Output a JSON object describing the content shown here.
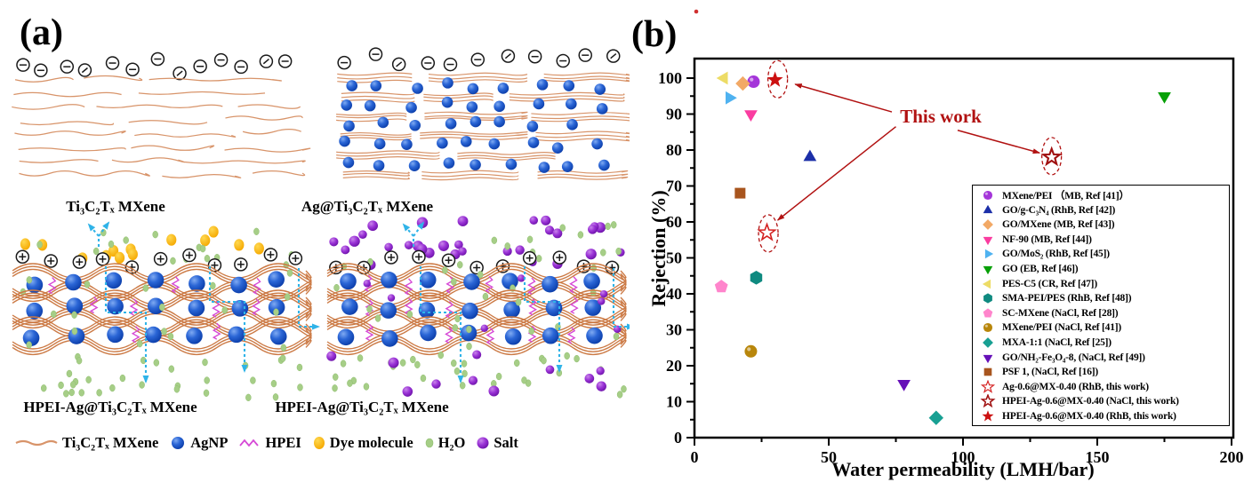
{
  "panel_a": {
    "label": "(a)",
    "sublabels": [
      "Ti₃C₂Tₓ MXene",
      "Ag@Ti₃C₂Tₓ MXene",
      "HPEI-Ag@Ti₃C₂Tₓ MXene",
      "HPEI-Ag@Ti₃C₂Tₓ MXene"
    ],
    "legend": [
      {
        "symbol": "mxene-wave",
        "label": "Ti₃C₂Tₓ MXene"
      },
      {
        "symbol": "agnp-sphere",
        "label": "AgNP"
      },
      {
        "symbol": "hpei-zigzag",
        "label": "HPEI"
      },
      {
        "symbol": "dye-sphere",
        "label": "Dye molecule"
      },
      {
        "symbol": "water-dot",
        "label": "H₂O"
      },
      {
        "symbol": "salt-sphere",
        "label": "Salt"
      }
    ],
    "charge_negative": "⊖",
    "charge_positive": "⊕",
    "colors": {
      "mxene_line": "#D8946A",
      "membrane_line": "#CC7A45",
      "agnp": "#1E56C8",
      "hpei": "#D649D6",
      "dye": "#FFB400",
      "water": "#A6CE87",
      "salt": "#8E24CE",
      "water_path_arrow": "#2FB3E8"
    }
  },
  "panel_b": {
    "label": "(b)"
  },
  "chart_data": {
    "type": "scatter",
    "title": "",
    "xlabel": "Water permeability (LMH/bar)",
    "ylabel": "Rejection (%)",
    "xlim": [
      0,
      200
    ],
    "ylim": [
      0,
      105
    ],
    "x_ticks": [
      0,
      50,
      100,
      150,
      200
    ],
    "y_ticks": [
      0,
      10,
      20,
      30,
      40,
      50,
      60,
      70,
      80,
      90,
      100
    ],
    "x_minor_step": 25,
    "y_minor_step": 5,
    "grid": false,
    "legend_position": "inside-right",
    "annotation": {
      "text": "This work",
      "color": "#B11111",
      "ellipses": [
        {
          "x": 31,
          "y": 99.7
        },
        {
          "x": 27.5,
          "y": 56.8
        },
        {
          "x": 133,
          "y": 78.3
        }
      ],
      "arrows": [
        {
          "x1": 73.5,
          "y1": 90.6,
          "x2": 37.5,
          "y2": 98.3
        },
        {
          "x1": 75.0,
          "y1": 86.5,
          "x2": 31.0,
          "y2": 60.5
        },
        {
          "x1": 98.0,
          "y1": 85.5,
          "x2": 128.5,
          "y2": 79.2
        }
      ]
    },
    "series": [
      {
        "name": "MXene/PEI （MB, Ref [41]）",
        "marker": "circle",
        "color": "#A435D9",
        "x": 22,
        "y": 99
      },
      {
        "name": "GO/g-C₃N₄ (RhB, Ref [42])",
        "marker": "triangle-up",
        "color": "#1C2FA8",
        "x": 43,
        "y": 78
      },
      {
        "name": "GO/MXene (MB, Ref [43])",
        "marker": "diamond",
        "color": "#F2A966",
        "x": 18,
        "y": 98.5
      },
      {
        "name": "NF-90 (MB, Ref [44])",
        "marker": "triangle-down",
        "color": "#FA3CA0",
        "x": 21,
        "y": 90
      },
      {
        "name": "GO/MoS₂ (RhB, Ref [45])",
        "marker": "triangle-right",
        "color": "#4FB2F0",
        "x": 13,
        "y": 94.5
      },
      {
        "name": "GO (EB, Ref [46])",
        "marker": "triangle-down",
        "color": "#07A007",
        "x": 175,
        "y": 95
      },
      {
        "name": "PES-C5 (CR, Ref [47])",
        "marker": "triangle-left",
        "color": "#EDDC66",
        "x": 11,
        "y": 100
      },
      {
        "name": "SMA-PEI/PES (RhB, Ref [48])",
        "marker": "hexagon",
        "color": "#0F8A80",
        "x": 23,
        "y": 44.5
      },
      {
        "name": "SC-MXene (NaCl, Ref [28])",
        "marker": "pentagon",
        "color": "#FF85CC",
        "x": 10,
        "y": 42
      },
      {
        "name": "MXene/PEI (NaCl, Ref [41])",
        "marker": "circle",
        "color": "#B8860B",
        "x": 21,
        "y": 24
      },
      {
        "name": "MXA-1:1 (NaCl, Ref [25])",
        "marker": "diamond",
        "color": "#18A093",
        "x": 90,
        "y": 5.5
      },
      {
        "name": "GO/NH₂-Fe₃O₄-8, (NaCl, Ref [49])",
        "marker": "triangle-down",
        "color": "#6610B8",
        "x": 78,
        "y": 15
      },
      {
        "name": "PSF 1,  (NaCl, Ref [16])",
        "marker": "square",
        "color": "#A8551E",
        "x": 17,
        "y": 68
      },
      {
        "name": "Ag-0.6@MX-0.40 (RhB, this work)",
        "marker": "star-open",
        "color": "#D42020",
        "x": 27,
        "y": 57
      },
      {
        "name": "HPEI-Ag-0.6@MX-0.40 (NaCl, this work)",
        "marker": "star-open-bold",
        "color": "#A01010",
        "x": 133,
        "y": 78
      },
      {
        "name": "HPEI-Ag-0.6@MX-0.40 (RhB, this work)",
        "marker": "star-filled",
        "color": "#CC1111",
        "x": 30,
        "y": 99.5
      }
    ]
  }
}
